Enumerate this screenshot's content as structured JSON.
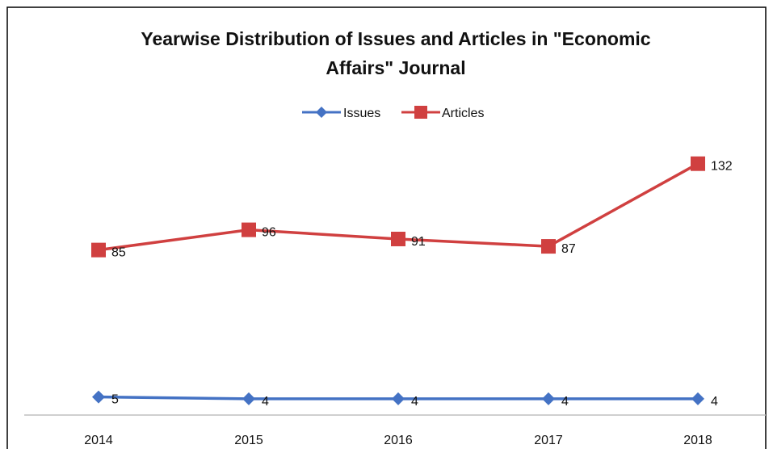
{
  "chart_data": {
    "type": "line",
    "title_lines": [
      "Yearwise Distribution of Issues and Articles in \"Economic",
      "Affairs\" Journal"
    ],
    "categories": [
      "2014",
      "2015",
      "2016",
      "2017",
      "2018"
    ],
    "series": [
      {
        "name": "Issues",
        "values": [
          5,
          4,
          4,
          4,
          4
        ],
        "color": "#4472C4",
        "marker": "diamond"
      },
      {
        "name": "Articles",
        "values": [
          85,
          96,
          91,
          87,
          132
        ],
        "color": "#D04040",
        "marker": "square"
      }
    ],
    "ylim": [
      0,
      160
    ],
    "grid": false,
    "legend_position": "top",
    "data_labels": true
  }
}
